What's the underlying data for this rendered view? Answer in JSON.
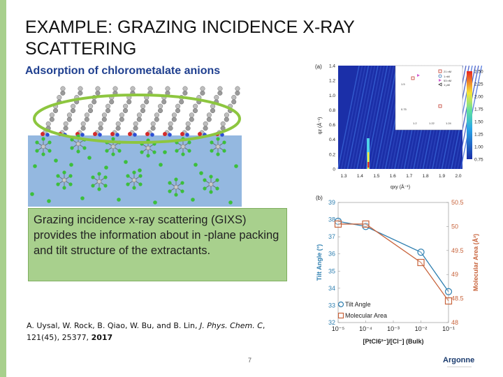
{
  "slide": {
    "title": "EXAMPLE: GRAZING INCIDENCE X-RAY SCATTERING",
    "subtitle": "Adsorption of chlorometalate anions",
    "box_text": "Grazing incidence x-ray scattering (GIXS) provides the information about in -plane packing and tilt structure of the extractants.",
    "citation": {
      "authors": "A. Uysal, W. Rock, B. Qiao, W. Bu, and B. Lin, ",
      "journal": "J. Phys. Chem. C",
      "rest": ", 121(45), 25377, ",
      "year": "2017"
    },
    "page_number": "7",
    "logo": "Argonne",
    "colors": {
      "accent": "#a8d08d",
      "subtitle": "#1f3f8f",
      "tilt": "#2f7fb0",
      "area": "#c8643c"
    }
  },
  "panel_a": {
    "label": "(a)",
    "x_label": "qxy (Å⁻¹)",
    "y_label": "qz (Å⁻¹)",
    "x_ticks": [
      "1.3",
      "1.4",
      "1.5",
      "1.6",
      "1.7",
      "1.8",
      "1.9",
      "2.0"
    ],
    "y_ticks": [
      "0",
      "0.2",
      "0.4",
      "0.6",
      "0.8",
      "1.0",
      "1.2",
      "1.4"
    ],
    "colorbar_ticks": [
      "0.75",
      "1.00",
      "1.25",
      "1.50",
      "1.75",
      "2.00",
      "2.25",
      "2.50"
    ],
    "inset": {
      "legend": [
        "21 nM",
        "1 nM",
        "53 nM",
        "1 μM"
      ],
      "x_ticks": [
        "1.2",
        "1.22",
        "1.24"
      ],
      "y_ticks": [
        "1.5",
        "0.75"
      ]
    }
  },
  "panel_b": {
    "label": "(b)",
    "xlabel": "[PtCl6²⁻]/[Cl⁻] (Bulk)",
    "ylabel_left": "Tilt Angle (°)",
    "ylabel_right": "Molecular Area (Å²)",
    "left_ticks": [
      "39",
      "38",
      "37",
      "36",
      "35",
      "34",
      "33",
      "32"
    ],
    "right_ticks": [
      "50.5",
      "50",
      "49.5",
      "49",
      "48.5",
      "48"
    ],
    "x_ticks": [
      "10⁻⁵",
      "10⁻⁴",
      "10⁻³",
      "10⁻²",
      "10⁻¹"
    ],
    "legend": {
      "tilt": "Tilt Angle",
      "area": "Molecular Area"
    }
  },
  "chart_data": {
    "type": "line",
    "x": [
      1e-05,
      0.0001,
      0.01,
      0.1
    ],
    "xscale": "log",
    "series": [
      {
        "name": "Tilt Angle",
        "axis": "left",
        "values": [
          37.9,
          37.6,
          36.1,
          33.8
        ]
      },
      {
        "name": "Molecular Area",
        "axis": "right",
        "values": [
          50.05,
          50.05,
          49.25,
          48.45
        ]
      }
    ],
    "ylim_left": [
      32,
      39
    ],
    "ylim_right": [
      48,
      50.5
    ],
    "xlim_exp": [
      -5,
      -1
    ],
    "xlabel": "[PtCl6²⁻]/[Cl⁻] (Bulk)",
    "ylabel": "Tilt Angle (°)",
    "ylabel_right": "Molecular Area (Å²)",
    "legend_position": "bottom-left",
    "grid": false
  }
}
